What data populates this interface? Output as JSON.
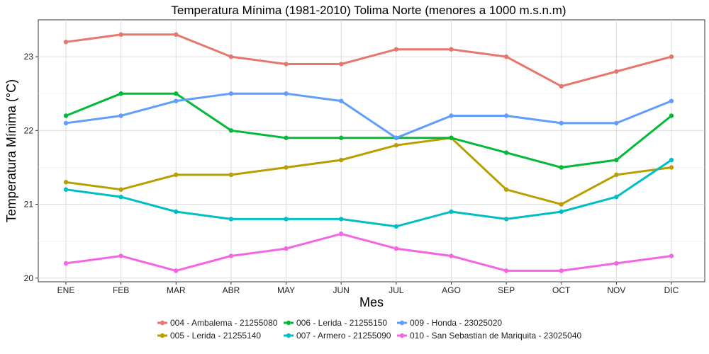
{
  "chart_data": {
    "type": "line",
    "title": "Temperatura Mínima (1981-2010) Tolima Norte (menores a 1000 m.s.n.m)",
    "xlabel": "Mes",
    "ylabel": "Temperatura Mínima (°C)",
    "categories": [
      "ENE",
      "FEB",
      "MAR",
      "ABR",
      "MAY",
      "JUN",
      "JUL",
      "AGO",
      "SEP",
      "OCT",
      "NOV",
      "DIC"
    ],
    "ylim": [
      19.95,
      23.5
    ],
    "yticks": [
      "20",
      "21",
      "22",
      "23"
    ],
    "grid": true,
    "legend_position": "bottom",
    "series": [
      {
        "name": "004 - Ambalema - 21255080",
        "color": "#E7766D",
        "values": [
          23.2,
          23.3,
          23.3,
          23.0,
          22.9,
          22.9,
          23.1,
          23.1,
          23.0,
          22.6,
          22.8,
          23.0
        ]
      },
      {
        "name": "005 - Lerida - 21255140",
        "color": "#B79F00",
        "values": [
          21.3,
          21.2,
          21.4,
          21.4,
          21.5,
          21.6,
          21.8,
          21.9,
          21.2,
          21.0,
          21.4,
          21.5
        ]
      },
      {
        "name": "006 - Lerida - 21255150",
        "color": "#00BA38",
        "values": [
          22.2,
          22.5,
          22.5,
          22.0,
          21.9,
          21.9,
          21.9,
          21.9,
          21.7,
          21.5,
          21.6,
          22.2
        ]
      },
      {
        "name": "007 - Armero - 21255090",
        "color": "#00BFC4",
        "values": [
          21.2,
          21.1,
          20.9,
          20.8,
          20.8,
          20.8,
          20.7,
          20.9,
          20.8,
          20.9,
          21.1,
          21.6
        ]
      },
      {
        "name": "009 - Honda - 23025020",
        "color": "#619CFF",
        "values": [
          22.1,
          22.2,
          22.4,
          22.5,
          22.5,
          22.4,
          21.9,
          22.2,
          22.2,
          22.1,
          22.1,
          22.4
        ]
      },
      {
        "name": "010 - San Sebastian de Mariquita - 23025040",
        "color": "#F564E3",
        "values": [
          20.2,
          20.3,
          20.1,
          20.3,
          20.4,
          20.6,
          20.4,
          20.3,
          20.1,
          20.1,
          20.2,
          20.3
        ]
      }
    ]
  }
}
